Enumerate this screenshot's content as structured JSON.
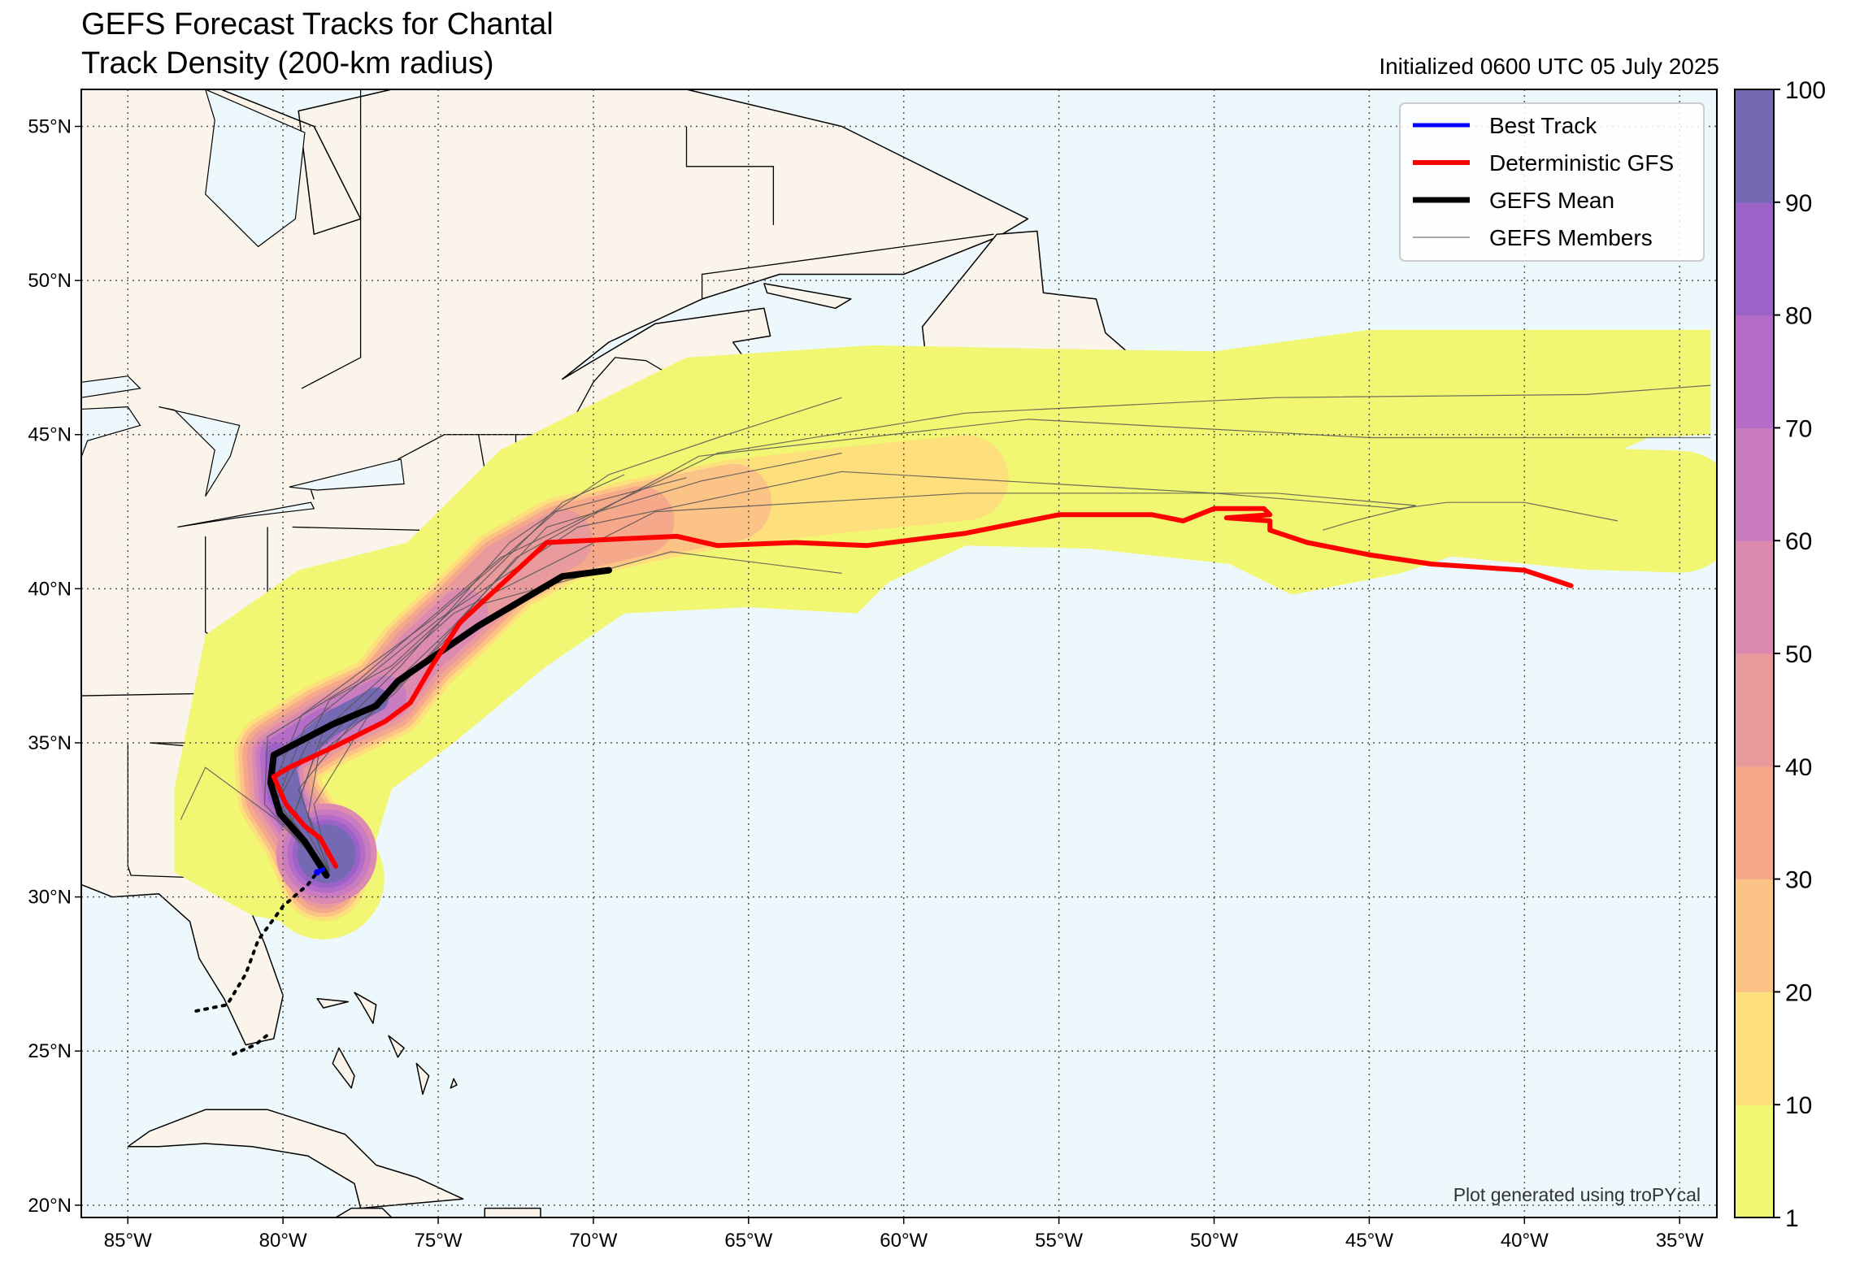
{
  "title": {
    "line1": "GEFS Forecast Tracks for Chantal",
    "line2": "Track Density (200-km radius)",
    "initialized": "Initialized 0600 UTC 05 July 2025"
  },
  "credit": "Plot generated using troPYcal",
  "axes": {
    "lon_range": [
      -86.5,
      -33.8
    ],
    "lat_range": [
      19.6,
      56.2
    ],
    "lon_ticks": [
      {
        "value": -85,
        "label": "85°W"
      },
      {
        "value": -80,
        "label": "80°W"
      },
      {
        "value": -75,
        "label": "75°W"
      },
      {
        "value": -70,
        "label": "70°W"
      },
      {
        "value": -65,
        "label": "65°W"
      },
      {
        "value": -60,
        "label": "60°W"
      },
      {
        "value": -55,
        "label": "55°W"
      },
      {
        "value": -50,
        "label": "50°W"
      },
      {
        "value": -45,
        "label": "45°W"
      },
      {
        "value": -40,
        "label": "40°W"
      },
      {
        "value": -35,
        "label": "35°W"
      }
    ],
    "lat_ticks": [
      {
        "value": 20,
        "label": "20°N"
      },
      {
        "value": 25,
        "label": "25°N"
      },
      {
        "value": 30,
        "label": "30°N"
      },
      {
        "value": 35,
        "label": "35°N"
      },
      {
        "value": 40,
        "label": "40°N"
      },
      {
        "value": 45,
        "label": "45°N"
      },
      {
        "value": 50,
        "label": "50°N"
      },
      {
        "value": 55,
        "label": "55°N"
      }
    ],
    "grid": "dotted"
  },
  "colors": {
    "ocean": "#ecf8fc",
    "land": "#fbf4ea",
    "coast": "#000000",
    "best_track": "#0000ff",
    "deterministic": "#ff0000",
    "mean": "#000000",
    "members": "#555555"
  },
  "legend": {
    "placement": "top-right",
    "items": [
      {
        "label": "Best Track",
        "color": "#0000ff",
        "width": 5
      },
      {
        "label": "Deterministic GFS",
        "color": "#ff0000",
        "width": 6
      },
      {
        "label": "GEFS Mean",
        "color": "#000000",
        "width": 7
      },
      {
        "label": "GEFS Members",
        "color": "#555555",
        "width": 1
      }
    ]
  },
  "colorbar": {
    "tick_labels": [
      "1",
      "10",
      "20",
      "30",
      "40",
      "50",
      "60",
      "70",
      "80",
      "90",
      "100"
    ],
    "colors": [
      "#f1f772",
      "#fde07c",
      "#fcc386",
      "#f6a98a",
      "#e99a9d",
      "#dd8ab0",
      "#c97dc0",
      "#b46cc8",
      "#9b62c8",
      "#7669b4"
    ]
  },
  "chart_data": {
    "type": "map",
    "best_track": [
      [
        -78.9,
        30.8
      ],
      [
        -78.7,
        30.9
      ]
    ],
    "deterministic_gfs": [
      [
        -78.3,
        31.0
      ],
      [
        -78.8,
        31.9
      ],
      [
        -79.3,
        32.3
      ],
      [
        -79.9,
        33.0
      ],
      [
        -80.3,
        33.9
      ],
      [
        -79.8,
        34.2
      ],
      [
        -78.3,
        34.9
      ],
      [
        -76.7,
        35.7
      ],
      [
        -75.9,
        36.3
      ],
      [
        -75.2,
        37.5
      ],
      [
        -74.3,
        38.9
      ],
      [
        -71.5,
        41.5
      ],
      [
        -69.5,
        41.6
      ],
      [
        -67.3,
        41.7
      ],
      [
        -66.0,
        41.4
      ],
      [
        -63.5,
        41.5
      ],
      [
        -61.2,
        41.4
      ],
      [
        -58.0,
        41.8
      ],
      [
        -55.0,
        42.4
      ],
      [
        -52.0,
        42.4
      ],
      [
        -51.0,
        42.2
      ],
      [
        -50.0,
        42.6
      ],
      [
        -48.4,
        42.6
      ],
      [
        -48.2,
        42.4
      ],
      [
        -49.6,
        42.3
      ],
      [
        -48.2,
        42.2
      ],
      [
        -48.2,
        41.9
      ],
      [
        -47.0,
        41.5
      ],
      [
        -45.0,
        41.1
      ],
      [
        -43.0,
        40.8
      ],
      [
        -40.0,
        40.6
      ],
      [
        -38.5,
        40.1
      ]
    ],
    "gefs_mean": [
      [
        -78.6,
        30.7
      ],
      [
        -79.3,
        31.8
      ],
      [
        -80.1,
        32.7
      ],
      [
        -80.4,
        33.7
      ],
      [
        -80.3,
        34.6
      ],
      [
        -78.4,
        35.6
      ],
      [
        -77.0,
        36.2
      ],
      [
        -76.3,
        37.0
      ],
      [
        -73.7,
        38.8
      ],
      [
        -71.0,
        40.4
      ],
      [
        -69.5,
        40.6
      ]
    ],
    "gefs_members": [
      [
        [
          -78.5,
          30.8
        ],
        [
          -80.6,
          33.0
        ],
        [
          -80.5,
          35.2
        ],
        [
          -77.6,
          37.0
        ],
        [
          -73.0,
          41.0
        ],
        [
          -66.0,
          44.4
        ],
        [
          -58.0,
          45.7
        ],
        [
          -48.0,
          46.2
        ],
        [
          -38.0,
          46.3
        ],
        [
          -34.0,
          46.6
        ]
      ],
      [
        [
          -78.5,
          30.8
        ],
        [
          -79.7,
          32.5
        ],
        [
          -79.0,
          34.5
        ],
        [
          -76.4,
          36.6
        ],
        [
          -72.5,
          41.0
        ],
        [
          -66.6,
          44.3
        ],
        [
          -56.0,
          45.5
        ],
        [
          -45.0,
          44.9
        ],
        [
          -34.0,
          44.9
        ]
      ],
      [
        [
          -78.5,
          30.8
        ],
        [
          -80.2,
          33.1
        ],
        [
          -79.3,
          35.5
        ],
        [
          -75.0,
          39.0
        ],
        [
          -70.5,
          42.0
        ],
        [
          -62.0,
          43.8
        ],
        [
          -50.0,
          43.1
        ],
        [
          -44.0,
          42.6
        ],
        [
          -42.5,
          42.8
        ],
        [
          -40.0,
          42.8
        ],
        [
          -37.0,
          42.2
        ]
      ],
      [
        [
          -78.5,
          30.8
        ],
        [
          -79.6,
          32.8
        ],
        [
          -78.7,
          35.4
        ],
        [
          -74.5,
          39.2
        ],
        [
          -68.0,
          42.5
        ],
        [
          -58.0,
          43.1
        ],
        [
          -48.0,
          43.1
        ],
        [
          -43.5,
          42.7
        ],
        [
          -45.5,
          42.2
        ],
        [
          -46.5,
          41.9
        ]
      ],
      [
        [
          -78.5,
          30.8
        ],
        [
          -79.0,
          33.0
        ],
        [
          -77.3,
          35.8
        ],
        [
          -73.6,
          39.5
        ],
        [
          -67.5,
          41.2
        ],
        [
          -62.0,
          40.5
        ]
      ],
      [
        [
          -78.5,
          30.8
        ],
        [
          -79.5,
          33.5
        ],
        [
          -77.8,
          35.6
        ],
        [
          -74.5,
          38.8
        ],
        [
          -71.5,
          42.0
        ],
        [
          -66.5,
          43.5
        ],
        [
          -62.0,
          44.4
        ]
      ],
      [
        [
          -78.5,
          30.8
        ],
        [
          -80.2,
          32.5
        ],
        [
          -82.5,
          34.2
        ],
        [
          -83.3,
          32.5
        ]
      ],
      [
        [
          -78.5,
          30.8
        ],
        [
          -79.2,
          32.6
        ],
        [
          -78.8,
          34.9
        ],
        [
          -76.2,
          37.5
        ],
        [
          -72.7,
          41.5
        ],
        [
          -69.5,
          43.7
        ],
        [
          -66.0,
          44.9
        ],
        [
          -62.0,
          46.2
        ]
      ],
      [
        [
          -78.5,
          30.8
        ],
        [
          -80.4,
          33.4
        ],
        [
          -79.4,
          35.9
        ],
        [
          -75.2,
          39.0
        ],
        [
          -71.2,
          42.5
        ],
        [
          -67.0,
          43.6
        ]
      ],
      [
        [
          -78.5,
          30.8
        ],
        [
          -79.5,
          31.8
        ],
        [
          -80.0,
          33.4
        ],
        [
          -78.5,
          36.4
        ],
        [
          -76.5,
          37.5
        ],
        [
          -73.8,
          40.0
        ],
        [
          -71.0,
          42.8
        ],
        [
          -69.0,
          43.7
        ]
      ]
    ],
    "density_contours": {
      "levels": [
        1,
        10,
        20,
        30,
        40,
        50,
        60,
        70,
        80,
        90,
        100
      ],
      "description": "GEFS member track density percentage within 200-km radius"
    }
  }
}
